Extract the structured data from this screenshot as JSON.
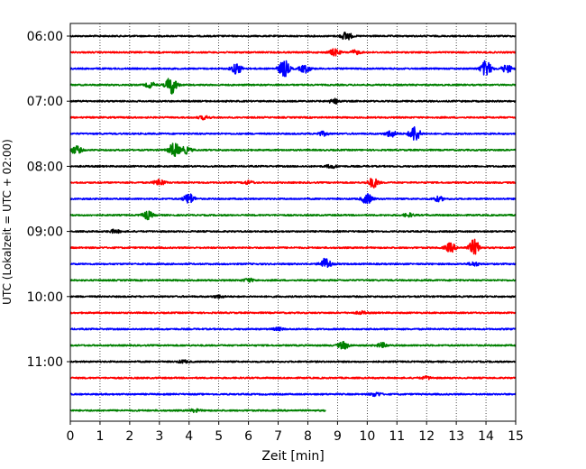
{
  "chart_data": {
    "type": "line",
    "title": "",
    "xlabel": "Zeit  [min]",
    "ylabel": "UTC (Lokalzeit = UTC + 02:00)",
    "xlim": [
      0,
      15
    ],
    "x_ticks": [
      "0",
      "1",
      "2",
      "3",
      "4",
      "5",
      "6",
      "7",
      "8",
      "9",
      "10",
      "11",
      "12",
      "13",
      "14",
      "15"
    ],
    "y_tick_labels": [
      "06:00",
      "07:00",
      "08:00",
      "09:00",
      "10:00",
      "11:00"
    ],
    "grid": "vertical dotted",
    "row_interval_min": 15,
    "colors_cycle": [
      "#000000",
      "#ff0000",
      "#0000ff",
      "#008000"
    ],
    "rows": [
      {
        "start": "06:00",
        "color": "#000000",
        "end_min": 15,
        "events": [
          {
            "t": 9.3,
            "amp": 1.3
          }
        ]
      },
      {
        "start": "06:15",
        "color": "#ff0000",
        "end_min": 15,
        "events": [
          {
            "t": 8.9,
            "amp": 1.0
          },
          {
            "t": 9.6,
            "amp": 0.6
          }
        ]
      },
      {
        "start": "06:30",
        "color": "#0000ff",
        "end_min": 15,
        "events": [
          {
            "t": 5.6,
            "amp": 1.6
          },
          {
            "t": 7.2,
            "amp": 2.6
          },
          {
            "t": 7.9,
            "amp": 1.2
          },
          {
            "t": 14.0,
            "amp": 2.4
          },
          {
            "t": 14.7,
            "amp": 1.2
          }
        ]
      },
      {
        "start": "06:45",
        "color": "#008000",
        "end_min": 15,
        "events": [
          {
            "t": 3.4,
            "amp": 2.8
          },
          {
            "t": 2.7,
            "amp": 0.8
          }
        ]
      },
      {
        "start": "07:00",
        "color": "#000000",
        "end_min": 15,
        "events": [
          {
            "t": 8.9,
            "amp": 0.7
          }
        ]
      },
      {
        "start": "07:15",
        "color": "#ff0000",
        "end_min": 15,
        "events": [
          {
            "t": 4.5,
            "amp": 0.5
          }
        ]
      },
      {
        "start": "07:30",
        "color": "#0000ff",
        "end_min": 15,
        "events": [
          {
            "t": 11.6,
            "amp": 2.4
          },
          {
            "t": 10.8,
            "amp": 1.0
          },
          {
            "t": 8.5,
            "amp": 0.6
          }
        ]
      },
      {
        "start": "07:45",
        "color": "#008000",
        "end_min": 15,
        "events": [
          {
            "t": 3.5,
            "amp": 2.2
          },
          {
            "t": 0.2,
            "amp": 1.2
          },
          {
            "t": 3.9,
            "amp": 1.0
          }
        ]
      },
      {
        "start": "08:00",
        "color": "#000000",
        "end_min": 15,
        "events": [
          {
            "t": 8.8,
            "amp": 0.5
          }
        ]
      },
      {
        "start": "08:15",
        "color": "#ff0000",
        "end_min": 15,
        "events": [
          {
            "t": 10.2,
            "amp": 1.5
          },
          {
            "t": 3.0,
            "amp": 1.0
          },
          {
            "t": 6.0,
            "amp": 0.5
          }
        ]
      },
      {
        "start": "08:30",
        "color": "#0000ff",
        "end_min": 15,
        "events": [
          {
            "t": 4.0,
            "amp": 1.6
          },
          {
            "t": 10.0,
            "amp": 1.5
          },
          {
            "t": 12.4,
            "amp": 0.7
          }
        ]
      },
      {
        "start": "08:45",
        "color": "#008000",
        "end_min": 15,
        "events": [
          {
            "t": 2.6,
            "amp": 1.2
          },
          {
            "t": 11.4,
            "amp": 0.5
          }
        ]
      },
      {
        "start": "09:00",
        "color": "#000000",
        "end_min": 15,
        "events": [
          {
            "t": 1.5,
            "amp": 0.5
          }
        ]
      },
      {
        "start": "09:15",
        "color": "#ff0000",
        "end_min": 15,
        "events": [
          {
            "t": 13.6,
            "amp": 2.4
          },
          {
            "t": 12.8,
            "amp": 1.4
          }
        ]
      },
      {
        "start": "09:30",
        "color": "#0000ff",
        "end_min": 15,
        "events": [
          {
            "t": 8.6,
            "amp": 1.8
          },
          {
            "t": 13.6,
            "amp": 0.6
          }
        ]
      },
      {
        "start": "09:45",
        "color": "#008000",
        "end_min": 15,
        "events": [
          {
            "t": 6.0,
            "amp": 0.5
          }
        ]
      },
      {
        "start": "10:00",
        "color": "#000000",
        "end_min": 15,
        "events": [
          {
            "t": 5.0,
            "amp": 0.4
          }
        ]
      },
      {
        "start": "10:15",
        "color": "#ff0000",
        "end_min": 15,
        "events": [
          {
            "t": 9.8,
            "amp": 0.4
          }
        ]
      },
      {
        "start": "10:30",
        "color": "#0000ff",
        "end_min": 15,
        "events": [
          {
            "t": 7.0,
            "amp": 0.4
          }
        ]
      },
      {
        "start": "10:45",
        "color": "#008000",
        "end_min": 15,
        "events": [
          {
            "t": 9.2,
            "amp": 1.1
          },
          {
            "t": 10.5,
            "amp": 0.7
          }
        ]
      },
      {
        "start": "11:00",
        "color": "#000000",
        "end_min": 15,
        "events": [
          {
            "t": 3.8,
            "amp": 0.4
          }
        ]
      },
      {
        "start": "11:15",
        "color": "#ff0000",
        "end_min": 15,
        "events": [
          {
            "t": 12.0,
            "amp": 0.4
          }
        ]
      },
      {
        "start": "11:30",
        "color": "#0000ff",
        "end_min": 15,
        "events": [
          {
            "t": 10.3,
            "amp": 0.6
          }
        ]
      },
      {
        "start": "11:45",
        "color": "#008000",
        "end_min": 8.6,
        "events": [
          {
            "t": 4.2,
            "amp": 0.4
          }
        ]
      }
    ]
  }
}
